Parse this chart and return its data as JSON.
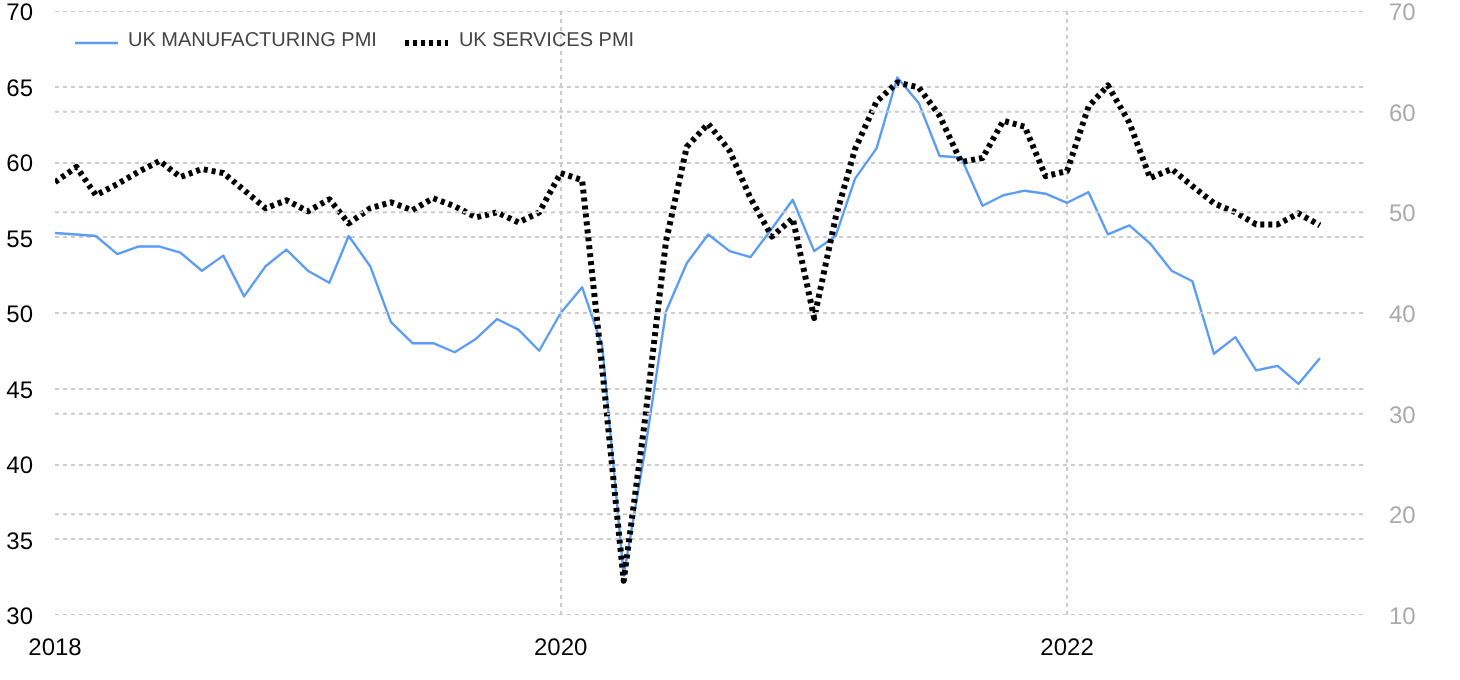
{
  "chart_data": {
    "type": "line",
    "x": [
      "2018-01",
      "2018-02",
      "2018-03",
      "2018-04",
      "2018-05",
      "2018-06",
      "2018-07",
      "2018-08",
      "2018-09",
      "2018-10",
      "2018-11",
      "2018-12",
      "2019-01",
      "2019-02",
      "2019-03",
      "2019-04",
      "2019-05",
      "2019-06",
      "2019-07",
      "2019-08",
      "2019-09",
      "2019-10",
      "2019-11",
      "2019-12",
      "2020-01",
      "2020-02",
      "2020-03",
      "2020-04",
      "2020-05",
      "2020-06",
      "2020-07",
      "2020-08",
      "2020-09",
      "2020-10",
      "2020-11",
      "2020-12",
      "2021-01",
      "2021-02",
      "2021-03",
      "2021-04",
      "2021-05",
      "2021-06",
      "2021-07",
      "2021-08",
      "2021-09",
      "2021-10",
      "2021-11",
      "2021-12",
      "2022-01",
      "2022-02",
      "2022-03",
      "2022-04",
      "2022-05",
      "2022-06",
      "2022-07",
      "2022-08",
      "2022-09",
      "2022-10",
      "2022-11",
      "2022-12",
      "2023-01"
    ],
    "series": [
      {
        "name": "UK MANUFACTURING PMI",
        "color": "#5b9cf6",
        "line_style": "solid",
        "values": [
          55.3,
          55.2,
          55.1,
          53.9,
          54.4,
          54.4,
          54.0,
          52.8,
          53.8,
          51.1,
          53.1,
          54.2,
          52.8,
          52.0,
          55.1,
          53.1,
          49.4,
          48.0,
          48.0,
          47.4,
          48.3,
          49.6,
          48.9,
          47.5,
          50.0,
          51.7,
          47.8,
          32.6,
          40.7,
          50.1,
          53.3,
          55.2,
          54.1,
          53.7,
          55.6,
          57.5,
          54.1,
          55.1,
          58.9,
          60.9,
          65.6,
          63.9,
          60.4,
          60.3,
          57.1,
          57.8,
          58.1,
          57.9,
          57.3,
          58.0,
          55.2,
          55.8,
          54.6,
          52.8,
          52.1,
          47.3,
          48.4,
          46.2,
          46.5,
          45.3,
          47.0
        ]
      },
      {
        "name": "UK SERVICES PMI",
        "color": "#000000",
        "line_style": "dotted",
        "axis": "y2",
        "values": [
          53.0,
          54.5,
          51.7,
          52.8,
          54.0,
          55.1,
          53.5,
          54.3,
          53.9,
          52.2,
          50.4,
          51.2,
          50.1,
          51.3,
          48.9,
          50.4,
          51.0,
          50.2,
          51.4,
          50.6,
          49.5,
          50.0,
          49.0,
          50.0,
          53.9,
          53.2,
          34.5,
          13.4,
          29.0,
          47.1,
          56.5,
          58.8,
          56.1,
          51.4,
          47.6,
          49.4,
          39.5,
          49.5,
          56.3,
          61.0,
          62.9,
          62.4,
          59.6,
          55.0,
          55.4,
          59.1,
          58.5,
          53.6,
          54.1,
          60.5,
          62.6,
          58.9,
          53.4,
          54.3,
          52.6,
          50.9,
          50.0,
          48.8,
          48.8,
          49.9,
          48.7
        ]
      }
    ],
    "xlim": [
      "2018-01-01",
      "2023-03-10"
    ],
    "xticks": [
      {
        "value": "2018-01-01",
        "label": "2018"
      },
      {
        "value": "2020-01-01",
        "label": "2020"
      },
      {
        "value": "2022-01-01",
        "label": "2022"
      }
    ],
    "ylim": [
      30,
      70
    ],
    "yticks": [
      30,
      35,
      40,
      45,
      50,
      55,
      60,
      65,
      70
    ],
    "y2lim": [
      10,
      70
    ],
    "y2ticks": [
      10,
      20,
      30,
      40,
      50,
      60,
      70
    ],
    "grid": true,
    "legend": "top left"
  }
}
